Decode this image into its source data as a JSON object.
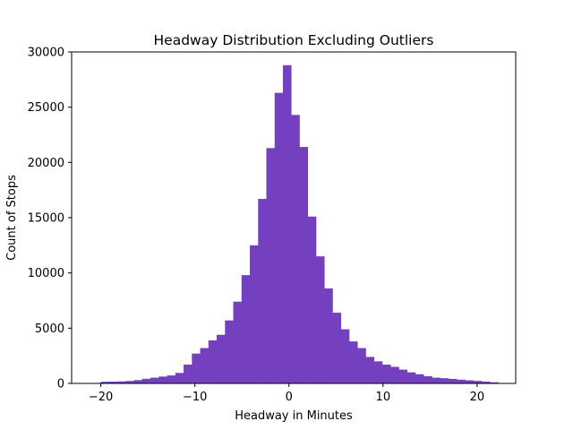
{
  "chart_data": {
    "type": "bar",
    "title": "Headway Distribution Excluding Outliers",
    "xlabel": "Headway in Minutes",
    "ylabel": "Count of Stops",
    "xlim": [
      -23.1,
      24.1
    ],
    "ylim": [
      0,
      30000
    ],
    "xticks": [
      -20,
      -10,
      0,
      10,
      20
    ],
    "xtick_labels": [
      "−20",
      "−10",
      "0",
      "10",
      "20"
    ],
    "yticks": [
      0,
      5000,
      10000,
      15000,
      20000,
      25000,
      30000
    ],
    "ytick_labels": [
      "0",
      "5000",
      "10000",
      "15000",
      "20000",
      "25000",
      "30000"
    ],
    "grid": false,
    "color": "#7540bf",
    "bin_start": -20,
    "bin_width": 0.88,
    "values": [
      150,
      160,
      180,
      220,
      300,
      420,
      520,
      620,
      720,
      950,
      1700,
      2700,
      3200,
      3900,
      4400,
      5700,
      7400,
      9800,
      12500,
      16700,
      21300,
      26300,
      28800,
      24300,
      21400,
      15100,
      11500,
      8600,
      6400,
      4900,
      3800,
      3200,
      2400,
      2000,
      1700,
      1500,
      1250,
      1000,
      830,
      650,
      520,
      470,
      410,
      340,
      280,
      230,
      160,
      100
    ]
  }
}
